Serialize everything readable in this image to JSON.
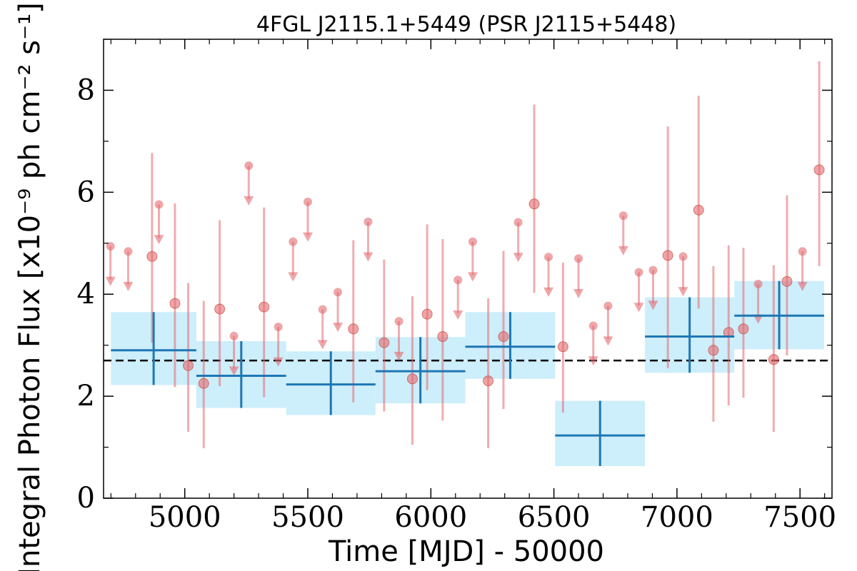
{
  "chart_data": {
    "type": "scatter",
    "title": "4FGL J2115.1+5449 (PSR J2115+5448)",
    "xlabel": "Time [MJD] - 50000",
    "ylabel": "Integral Photon Flux [x10⁻⁹ ph cm⁻² s⁻¹]",
    "xlim": [
      4670,
      7630
    ],
    "ylim": [
      0,
      9
    ],
    "x_ticks": [
      5000,
      5500,
      6000,
      6500,
      7000,
      7500
    ],
    "y_ticks": [
      0,
      2,
      4,
      6,
      8
    ],
    "grid": false,
    "reference_line": {
      "style": "dashed",
      "color": "#000000",
      "y": 2.7
    },
    "colors": {
      "short_bins": "#e36a6f",
      "long_bins_line": "#1f77b4",
      "long_bins_fill": "#cdeefb",
      "reference": "#000000"
    },
    "series": [
      {
        "bin": "short",
        "points": [
          {
            "x": 4867,
            "y": 4.74,
            "ylo": 3.05,
            "yhi": 6.77
          },
          {
            "x": 4960,
            "y": 3.82,
            "ylo": 2.18,
            "yhi": 5.78
          },
          {
            "x": 5014,
            "y": 2.6,
            "ylo": 1.3,
            "yhi": 4.22
          },
          {
            "x": 5077,
            "y": 2.25,
            "ylo": 0.98,
            "yhi": 3.87
          },
          {
            "x": 5142,
            "y": 3.71,
            "ylo": 2.2,
            "yhi": 5.45
          },
          {
            "x": 5322,
            "y": 3.75,
            "ylo": 1.98,
            "yhi": 5.7
          },
          {
            "x": 5685,
            "y": 3.32,
            "ylo": 1.88,
            "yhi": 5.06
          },
          {
            "x": 5810,
            "y": 3.05,
            "ylo": 1.7,
            "yhi": 4.68
          },
          {
            "x": 5925,
            "y": 2.34,
            "ylo": 1.05,
            "yhi": 3.96
          },
          {
            "x": 5985,
            "y": 3.61,
            "ylo": 2.12,
            "yhi": 5.37
          },
          {
            "x": 6048,
            "y": 3.17,
            "ylo": 1.52,
            "yhi": 5.08
          },
          {
            "x": 6233,
            "y": 2.3,
            "ylo": 0.98,
            "yhi": 3.92
          },
          {
            "x": 6295,
            "y": 3.17,
            "ylo": 1.75,
            "yhi": 4.85
          },
          {
            "x": 6420,
            "y": 5.77,
            "ylo": 4.03,
            "yhi": 7.72
          },
          {
            "x": 6537,
            "y": 2.97,
            "ylo": 1.68,
            "yhi": 4.62
          },
          {
            "x": 6963,
            "y": 4.76,
            "ylo": 2.55,
            "yhi": 7.29
          },
          {
            "x": 7088,
            "y": 5.65,
            "ylo": 3.72,
            "yhi": 7.89
          },
          {
            "x": 7148,
            "y": 2.9,
            "ylo": 1.5,
            "yhi": 4.55
          },
          {
            "x": 7210,
            "y": 3.25,
            "ylo": 1.82,
            "yhi": 4.96
          },
          {
            "x": 7270,
            "y": 3.32,
            "ylo": 1.97,
            "yhi": 4.91
          },
          {
            "x": 7393,
            "y": 2.72,
            "ylo": 1.3,
            "yhi": 4.57
          },
          {
            "x": 7447,
            "y": 4.25,
            "ylo": 2.8,
            "yhi": 5.94
          },
          {
            "x": 7578,
            "y": 6.44,
            "ylo": 4.55,
            "yhi": 8.57
          }
        ],
        "upper_limits": [
          {
            "x": 4698,
            "y": 4.94
          },
          {
            "x": 4770,
            "y": 4.84
          },
          {
            "x": 4895,
            "y": 5.76
          },
          {
            "x": 5200,
            "y": 3.18
          },
          {
            "x": 5260,
            "y": 6.52
          },
          {
            "x": 5380,
            "y": 3.36
          },
          {
            "x": 5440,
            "y": 5.03
          },
          {
            "x": 5500,
            "y": 5.81
          },
          {
            "x": 5560,
            "y": 3.7
          },
          {
            "x": 5622,
            "y": 4.04
          },
          {
            "x": 5745,
            "y": 5.42
          },
          {
            "x": 5870,
            "y": 3.47
          },
          {
            "x": 6110,
            "y": 4.28
          },
          {
            "x": 6170,
            "y": 5.03
          },
          {
            "x": 6355,
            "y": 5.41
          },
          {
            "x": 6478,
            "y": 4.73
          },
          {
            "x": 6600,
            "y": 4.7
          },
          {
            "x": 6660,
            "y": 3.38
          },
          {
            "x": 6720,
            "y": 3.77
          },
          {
            "x": 6782,
            "y": 5.54
          },
          {
            "x": 6845,
            "y": 4.43
          },
          {
            "x": 6903,
            "y": 4.47
          },
          {
            "x": 7025,
            "y": 4.74
          },
          {
            "x": 7330,
            "y": 4.2
          },
          {
            "x": 7510,
            "y": 4.84
          }
        ]
      },
      {
        "bin": "long",
        "points": [
          {
            "x0": 4700,
            "x1": 5047,
            "y": 2.9,
            "ylo": 2.22,
            "yhi": 3.65
          },
          {
            "x0": 5047,
            "x1": 5412,
            "y": 2.4,
            "ylo": 1.77,
            "yhi": 3.08
          },
          {
            "x0": 5412,
            "x1": 5775,
            "y": 2.23,
            "ylo": 1.63,
            "yhi": 2.88
          },
          {
            "x0": 5775,
            "x1": 6140,
            "y": 2.49,
            "ylo": 1.86,
            "yhi": 3.16
          },
          {
            "x0": 6140,
            "x1": 6505,
            "y": 2.97,
            "ylo": 2.34,
            "yhi": 3.65
          },
          {
            "x0": 6505,
            "x1": 6870,
            "y": 1.23,
            "ylo": 0.63,
            "yhi": 1.91
          },
          {
            "x0": 6870,
            "x1": 7233,
            "y": 3.17,
            "ylo": 2.46,
            "yhi": 3.94
          },
          {
            "x0": 7233,
            "x1": 7598,
            "y": 3.58,
            "ylo": 2.92,
            "yhi": 4.26
          }
        ]
      }
    ]
  }
}
